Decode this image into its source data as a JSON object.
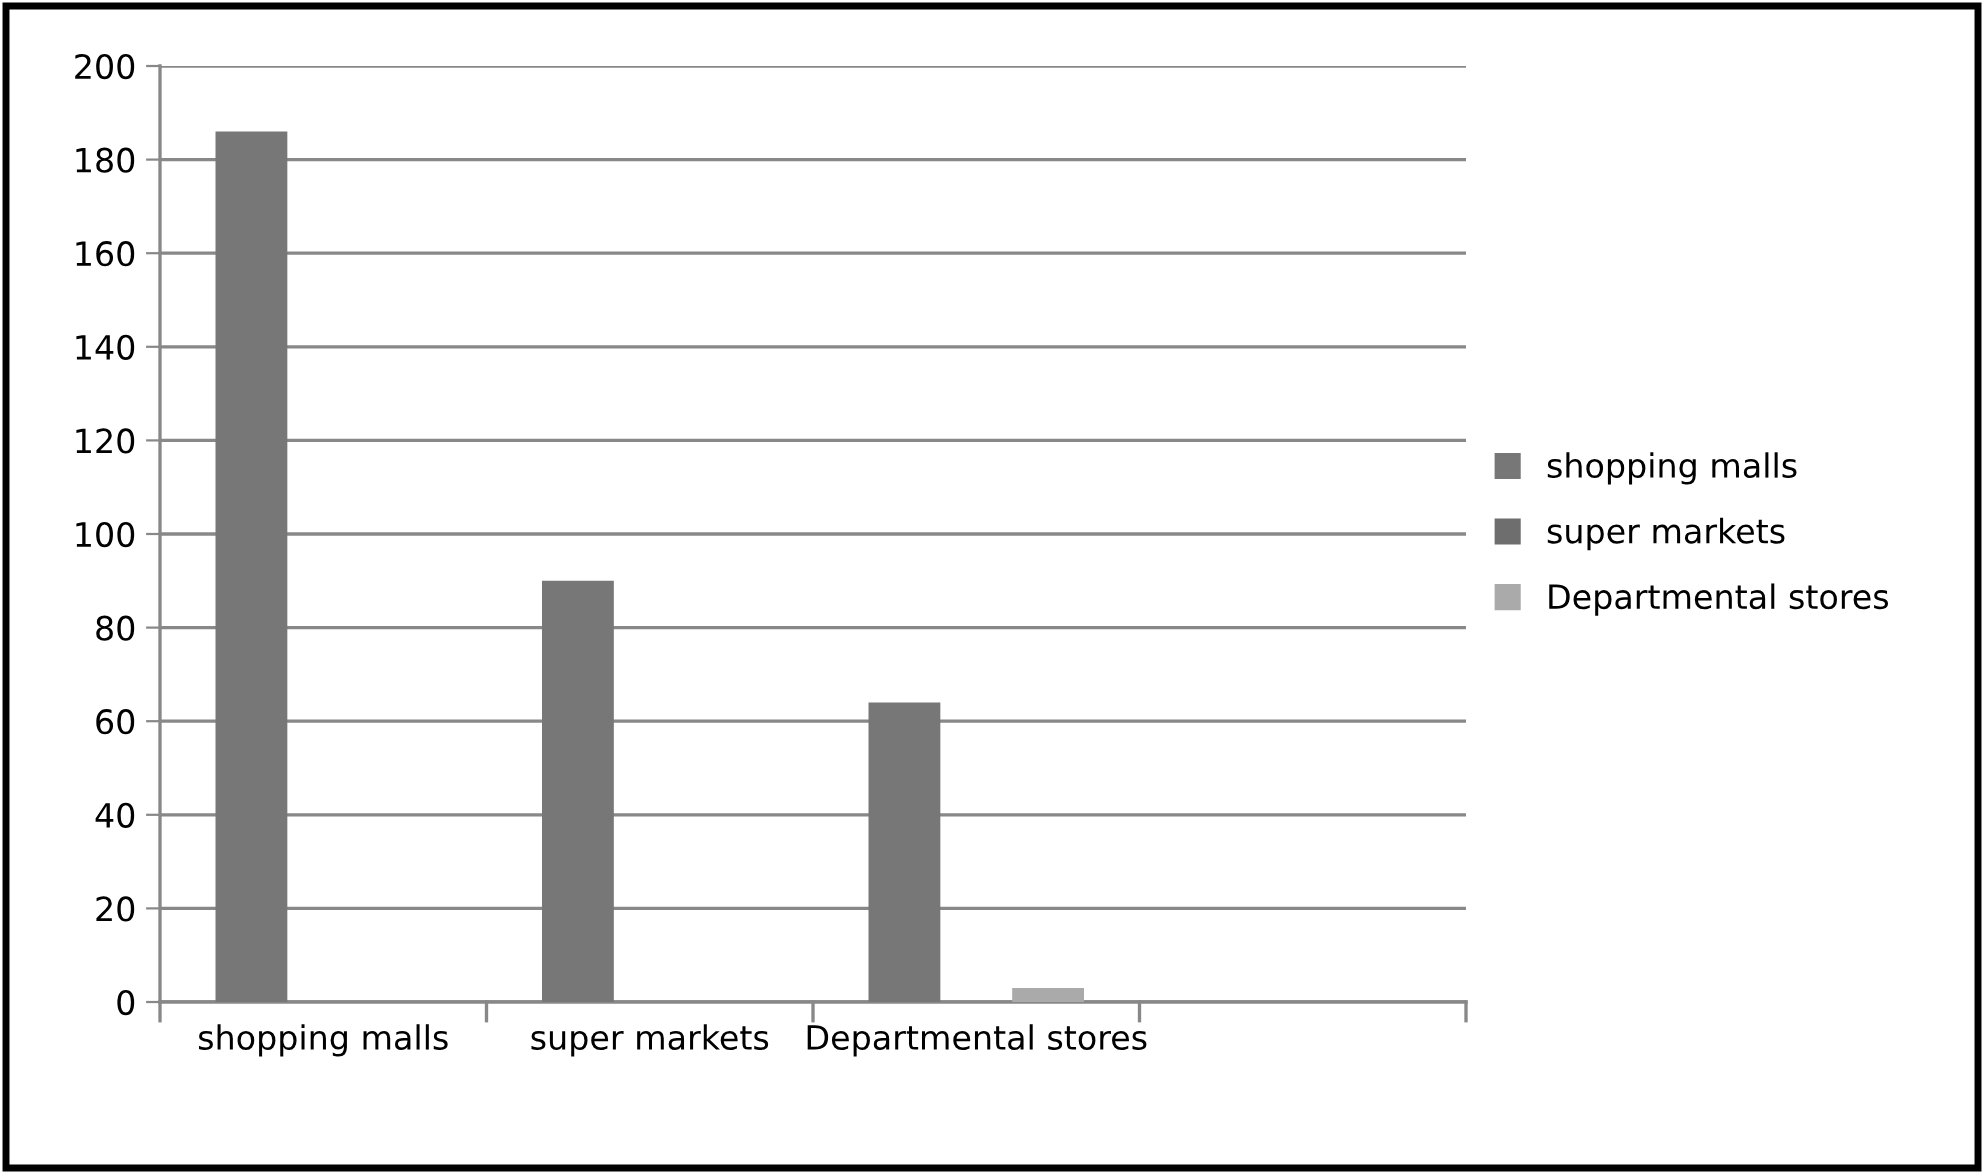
{
  "chart_data": {
    "type": "bar",
    "categories": [
      "shopping malls",
      "super markets",
      "Departmental stores",
      null
    ],
    "series": [
      {
        "name": "shopping malls",
        "color": "#777777",
        "values": [
          186,
          90,
          64,
          null
        ]
      },
      {
        "name": "super markets",
        "color": "#6e6e6e",
        "values": [
          null,
          null,
          null,
          null
        ]
      },
      {
        "name": "Departmental stores",
        "color": "#aaaaaa",
        "values": [
          null,
          null,
          3,
          null
        ]
      }
    ],
    "ylim": [
      0,
      200
    ],
    "yticks": [
      0,
      20,
      40,
      60,
      80,
      100,
      120,
      140,
      160,
      180,
      200
    ],
    "grid": "y",
    "legend": "right"
  }
}
